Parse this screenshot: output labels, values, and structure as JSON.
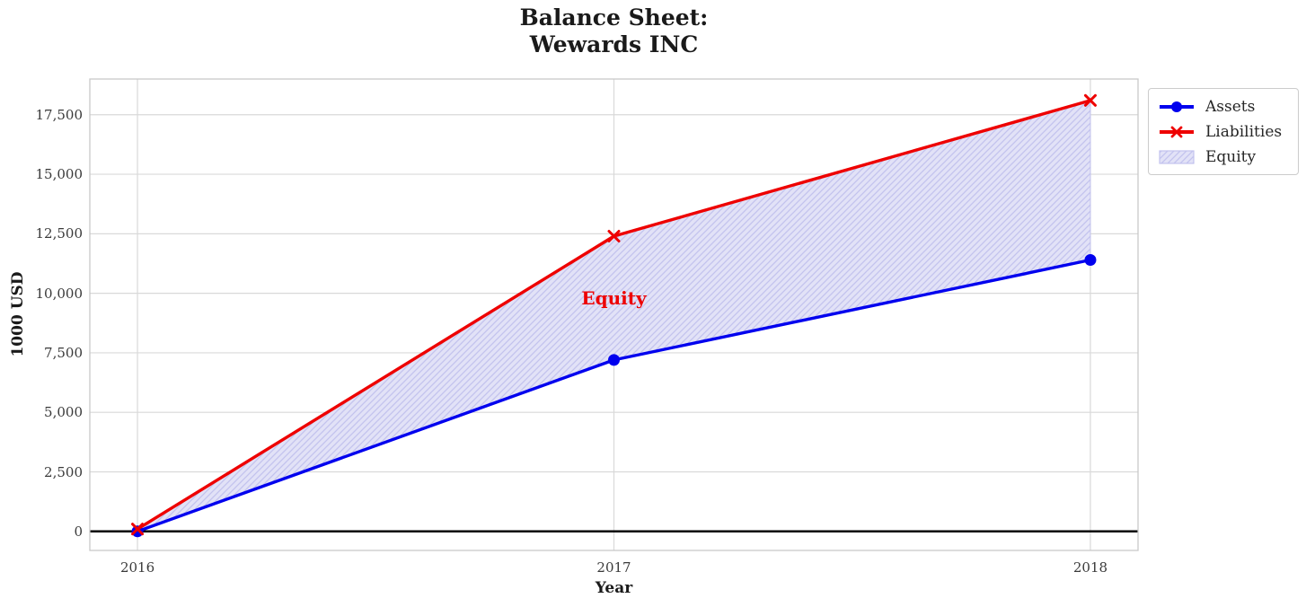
{
  "title": "Balance Sheet:\nWewards INC",
  "chart_data": {
    "type": "line",
    "title": "Balance Sheet: Wewards INC",
    "xlabel": "Year",
    "ylabel": "1000 USD",
    "x": [
      2016,
      2017,
      2018
    ],
    "series": [
      {
        "name": "Assets",
        "color": "#0000ee",
        "marker": "circle",
        "values": [
          0,
          7200,
          11400
        ]
      },
      {
        "name": "Liabilities",
        "color": "#ee0000",
        "marker": "x",
        "values": [
          100,
          12400,
          18100
        ]
      }
    ],
    "fill_between": {
      "label": "Equity",
      "upper_series": "Liabilities",
      "lower_series": "Assets",
      "fill_color": "#e2e2f7",
      "hatch_color": "#c3c3ee",
      "hatch": "/",
      "annotation": {
        "text": "Equity",
        "x": 2017,
        "y": 9800,
        "color": "#ee0000"
      }
    },
    "xlim": [
      2015.9,
      2018.1
    ],
    "ylim": [
      -800,
      19000
    ],
    "xticks": [
      2016,
      2017,
      2018
    ],
    "xtick_labels": [
      "2016",
      "2017",
      "2018"
    ],
    "yticks": [
      0,
      2500,
      5000,
      7500,
      10000,
      12500,
      15000,
      17500
    ],
    "ytick_labels": [
      "0",
      "2,500",
      "5,000",
      "7,500",
      "10,000",
      "12,500",
      "15,000",
      "17,500"
    ],
    "grid": true,
    "grid_color": "#d9d9d9",
    "spine_color": "#c9c9c9",
    "zero_line": true,
    "zero_line_color": "#000000",
    "legend_position": "upper right outside",
    "legend_entries": [
      "Assets",
      "Liabilities",
      "Equity"
    ]
  }
}
